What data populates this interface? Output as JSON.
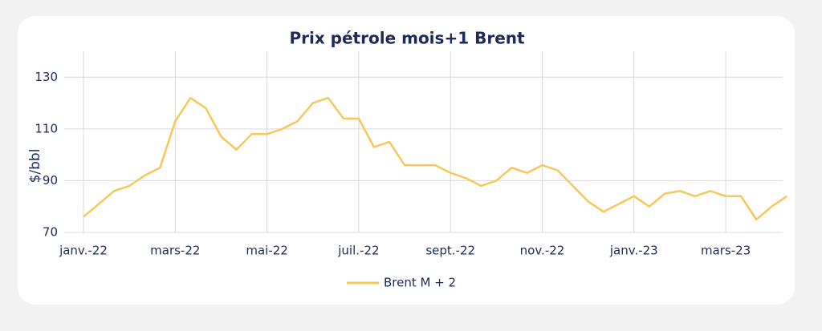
{
  "chart_data": {
    "type": "line",
    "title": "Prix pétrole mois+1 Brent",
    "y_label": "$/bbl",
    "categories": [
      "janv.-22",
      null,
      null,
      null,
      null,
      null,
      "mars-22",
      null,
      null,
      null,
      null,
      null,
      "mai-22",
      null,
      null,
      null,
      null,
      null,
      "juil.-22",
      null,
      null,
      null,
      null,
      null,
      "sept.-22",
      null,
      null,
      null,
      null,
      null,
      "nov.-22",
      null,
      null,
      null,
      null,
      null,
      "janv.-23",
      null,
      null,
      null,
      null,
      null,
      "mars-23",
      null,
      null,
      null,
      null
    ],
    "series": [
      {
        "name": "Brent M + 2",
        "color": "#f8c75a",
        "values": [
          76,
          81,
          86,
          88,
          92,
          95,
          113,
          122,
          118,
          107,
          102,
          108,
          108,
          110,
          113,
          120,
          122,
          114,
          114,
          103,
          105,
          96,
          96,
          96,
          93,
          91,
          88,
          90,
          95,
          93,
          96,
          94,
          88,
          82,
          78,
          81,
          84,
          80,
          85,
          86,
          84,
          86,
          84,
          84,
          75,
          80,
          84
        ]
      }
    ],
    "ylim": [
      70,
      140
    ],
    "yticks": [
      70,
      90,
      110,
      130
    ],
    "grid": true,
    "legend": "bottom"
  }
}
